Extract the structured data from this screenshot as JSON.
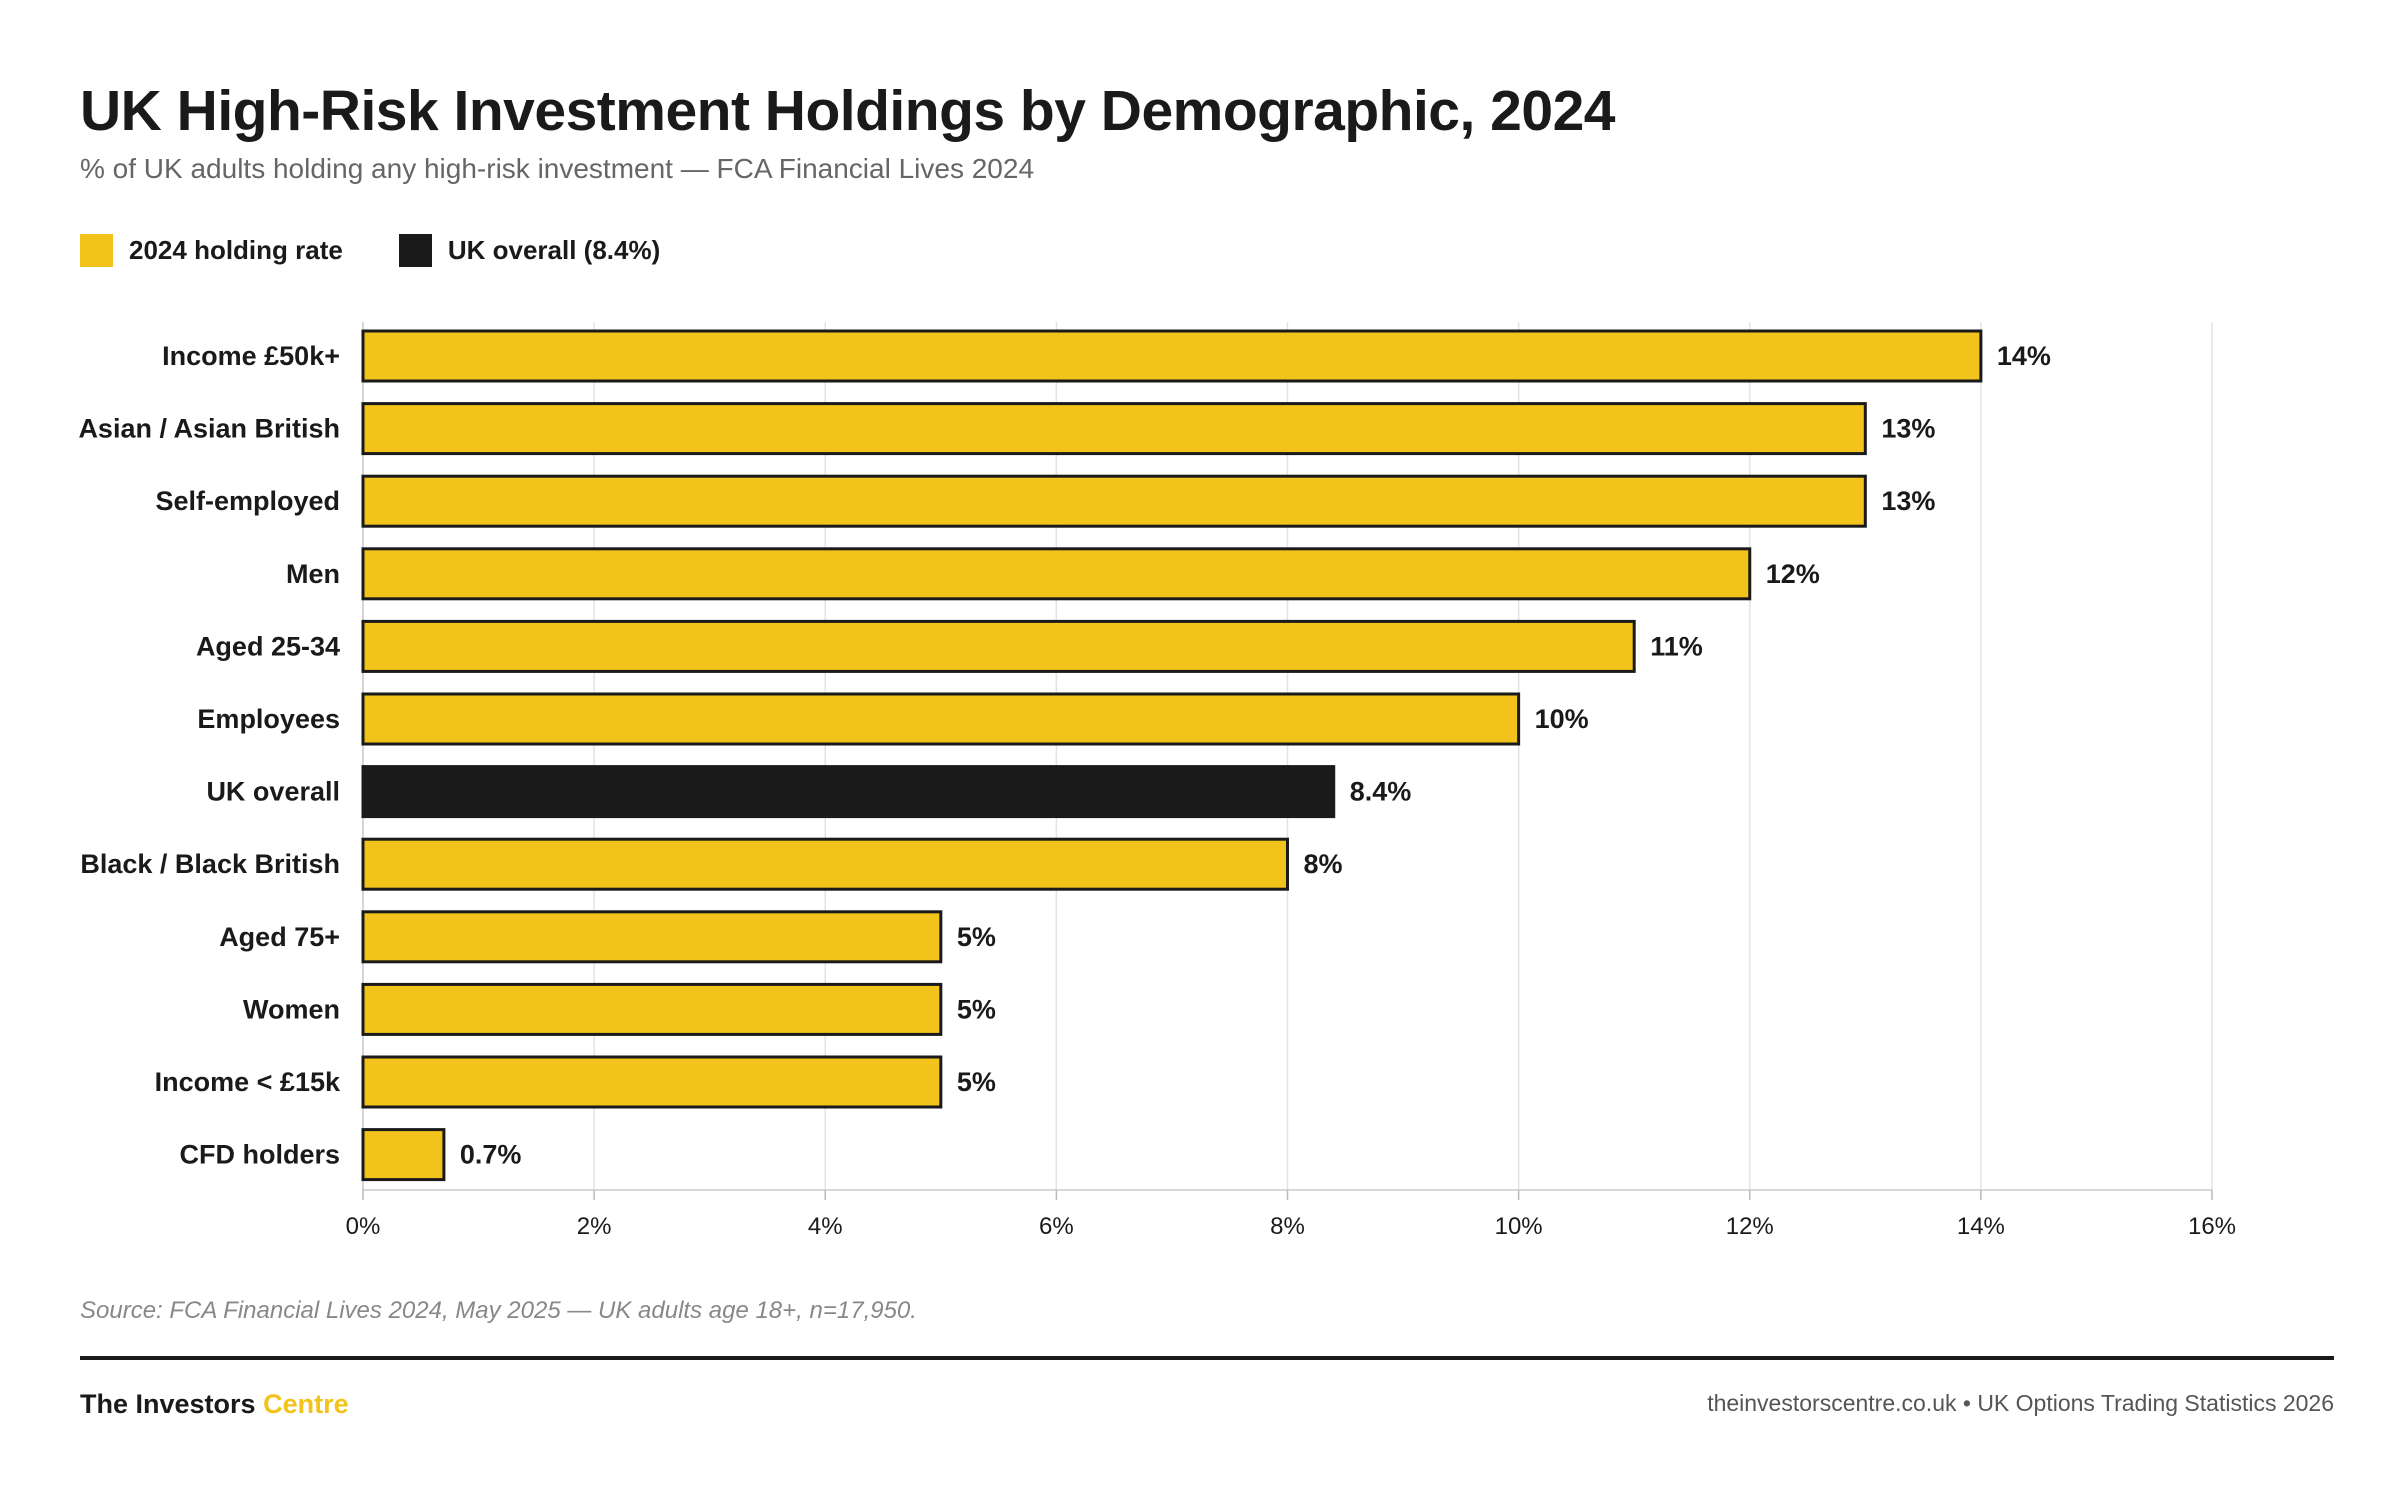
{
  "title": "UK High-Risk Investment Holdings by Demographic, 2024",
  "subtitle": "% of UK adults holding any high-risk investment — FCA Financial Lives 2024",
  "legend": [
    {
      "label": "2024 holding rate",
      "color": "#f2c31b"
    },
    {
      "label": "UK overall (8.4%)",
      "color": "#1a1a1a"
    }
  ],
  "chart_data": {
    "type": "bar",
    "orientation": "horizontal",
    "categories": [
      "Income £50k+",
      "Asian / Asian British",
      "Self-employed",
      "Men",
      "Aged 25-34",
      "Employees",
      "UK overall",
      "Black / Black British",
      "Aged 75+",
      "Women",
      "Income < £15k",
      "CFD holders"
    ],
    "values": [
      14,
      13,
      13,
      12,
      11,
      10,
      8.4,
      8,
      5,
      5,
      5,
      0.7
    ],
    "value_labels": [
      "14%",
      "13%",
      "13%",
      "12%",
      "11%",
      "10%",
      "8.4%",
      "8%",
      "5%",
      "5%",
      "5%",
      "0.7%"
    ],
    "highlight": "UK overall",
    "xlim": [
      0,
      16
    ],
    "xticks": [
      0,
      2,
      4,
      6,
      8,
      10,
      12,
      14,
      16
    ],
    "xtick_labels": [
      "0%",
      "2%",
      "4%",
      "6%",
      "8%",
      "10%",
      "12%",
      "14%",
      "16%"
    ],
    "grid": true,
    "colors": {
      "bar": "#f2c31b",
      "highlight": "#1a1a1a",
      "outline": "#1a1a1a",
      "grid": "#e3e3e3"
    }
  },
  "source": "Source: FCA Financial Lives 2024, May 2025 — UK adults age 18+, n=17,950.",
  "footer": {
    "brand_main": "The Investors",
    "brand_accent": "Centre",
    "right": "theinvestorscentre.co.uk • UK Options Trading Statistics 2026"
  }
}
